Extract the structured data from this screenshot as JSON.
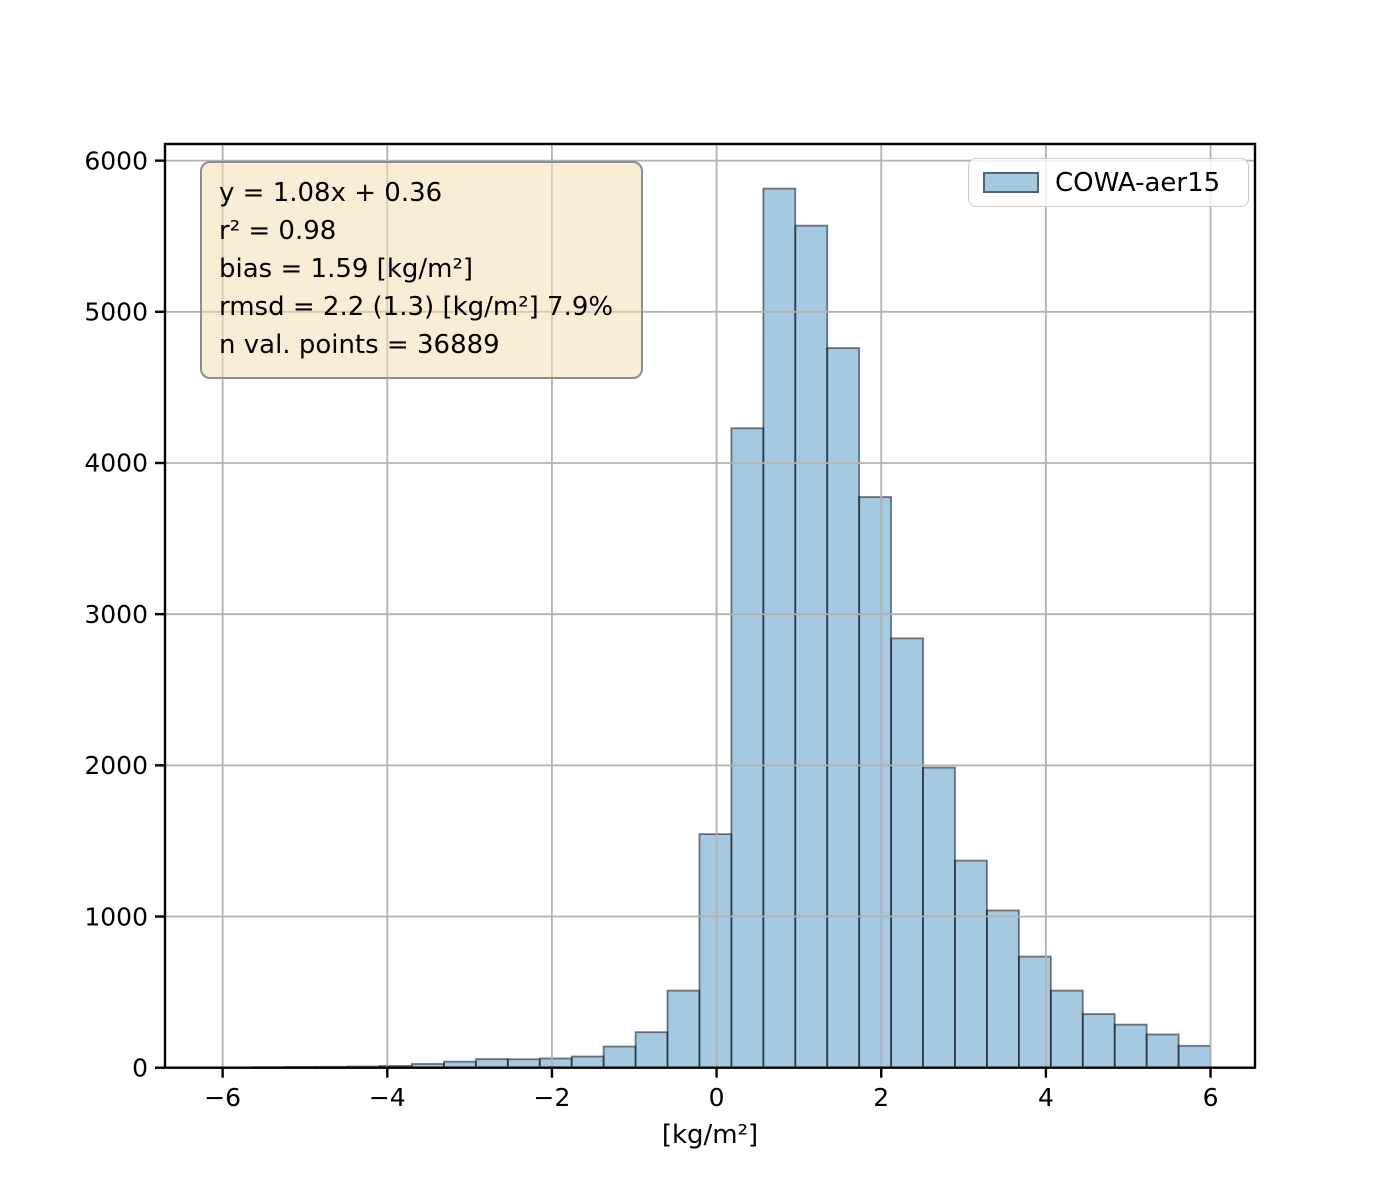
{
  "figure": {
    "background": "#ffffff"
  },
  "chart_data": {
    "type": "bar",
    "subtype": "histogram",
    "title": "",
    "xlabel": "[kg/m²]",
    "ylabel": "",
    "series": [
      {
        "name": "COWA-aer15",
        "bin_edges": [
          -5.64,
          -5.252,
          -4.864,
          -4.476,
          -4.088,
          -3.7,
          -3.312,
          -2.924,
          -2.536,
          -2.148,
          -1.76,
          -1.372,
          -0.984,
          -0.596,
          -0.208,
          0.18,
          0.568,
          0.956,
          1.344,
          1.732,
          2.12,
          2.508,
          2.896,
          3.284,
          3.672,
          4.06,
          4.448,
          4.836,
          5.224,
          5.612,
          6.0
        ],
        "counts": [
          3,
          5,
          6,
          8,
          12,
          25,
          40,
          57,
          56,
          61,
          74,
          140,
          235,
          510,
          1545,
          4230,
          5815,
          5570,
          4760,
          3775,
          2840,
          1985,
          1370,
          1040,
          735,
          510,
          355,
          285,
          220,
          145
        ]
      }
    ],
    "xlim": [
      -6.7,
      6.54
    ],
    "ylim": [
      0,
      6110
    ],
    "xticks": {
      "values": [
        -6,
        -4,
        -2,
        0,
        2,
        4,
        6
      ],
      "labels": [
        "−6",
        "−4",
        "−2",
        "0",
        "2",
        "4",
        "6"
      ]
    },
    "yticks": {
      "values": [
        0,
        1000,
        2000,
        3000,
        4000,
        5000,
        6000
      ],
      "labels": [
        "0",
        "1000",
        "2000",
        "3000",
        "4000",
        "5000",
        "6000"
      ]
    },
    "grid": true,
    "grid_over_bars": true,
    "legend": {
      "label": "COWA-aer15",
      "position": "upper right"
    },
    "annotation": {
      "lines": [
        "y = 1.08x + 0.36",
        "r² = 0.98",
        "bias = 1.59 [kg/m²]",
        "rmsd = 2.2 (1.3) [kg/m²] 7.9%",
        "n val. points = 36889"
      ]
    },
    "colors": {
      "bar_fill": "rgba(31,119,180,0.4)",
      "bar_edge": "rgba(0,0,0,0.5)",
      "grid": "#b2b2b2",
      "spine": "#000000",
      "tick_label": "#000000",
      "stats_bg": "rgba(245,222,179,0.55)",
      "stats_border": "#8d8d8d",
      "legend_bg": "rgba(255,255,255,0.8)",
      "legend_border": "#cbcbcb",
      "legend_swatch_edge": "rgba(0,0,0,0.5)"
    }
  }
}
